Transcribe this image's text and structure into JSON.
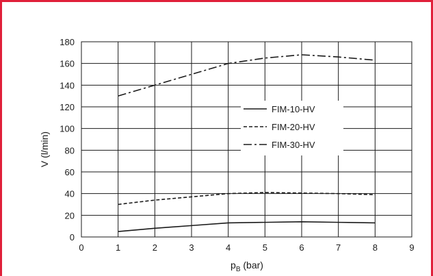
{
  "chart_data": {
    "type": "line",
    "title": "",
    "xlabel": "p",
    "xlabel_sub": "B",
    "xlabel_unit": " (bar)",
    "ylabel": "V (l/min)",
    "xlim": [
      0,
      9
    ],
    "ylim": [
      0,
      180
    ],
    "xticks": [
      0,
      1,
      2,
      3,
      4,
      5,
      6,
      7,
      8,
      9
    ],
    "yticks": [
      0,
      20,
      40,
      60,
      80,
      100,
      120,
      140,
      160,
      180
    ],
    "grid": true,
    "legend_position": "center-right",
    "series": [
      {
        "name": "FIM-10-HV",
        "style": "solid",
        "color": "#1a1a1a",
        "x": [
          1,
          2,
          3,
          4,
          5,
          6,
          7,
          8
        ],
        "y": [
          5,
          8,
          10.5,
          13,
          13.5,
          14,
          13.5,
          13
        ]
      },
      {
        "name": "FIM-20-HV",
        "style": "dashed",
        "color": "#1a1a1a",
        "x": [
          1,
          2,
          3,
          4,
          5,
          6,
          7,
          8
        ],
        "y": [
          30,
          34,
          37,
          40,
          41,
          40.5,
          40,
          39
        ]
      },
      {
        "name": "FIM-30-HV",
        "style": "dashdot",
        "color": "#1a1a1a",
        "x": [
          1,
          2,
          3,
          4,
          5,
          6,
          7,
          8
        ],
        "y": [
          130,
          140,
          150,
          160,
          165,
          168,
          166,
          163
        ]
      }
    ]
  },
  "colors": {
    "frame": "#e0203a",
    "grid": "#1a1a1a"
  }
}
